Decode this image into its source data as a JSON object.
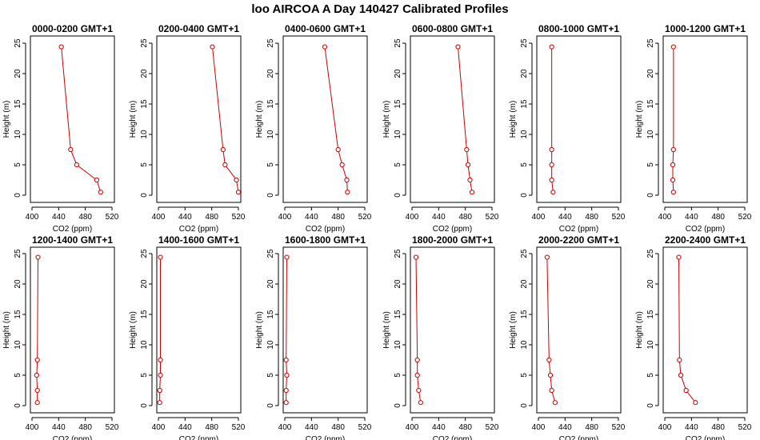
{
  "figure": {
    "title": "loo AIRCOA A  Day 140427  Calibrated Profiles"
  },
  "chart_data": {
    "type": "line",
    "shared": {
      "xlabel": "CO2 (ppm)",
      "ylabel": "Height (m)",
      "xlim": [
        400,
        520
      ],
      "ylim": [
        0,
        25
      ],
      "xticks": [
        400,
        440,
        480,
        520
      ],
      "yticks": [
        0,
        5,
        10,
        15,
        20,
        25
      ],
      "grid": false,
      "line_color": "#cc0000",
      "point_color": "#cc0000"
    },
    "panels": [
      {
        "title": "0000-0200 GMT+1",
        "x": [
          503,
          497,
          467,
          458,
          444
        ],
        "y": [
          0.5,
          2.5,
          5.0,
          7.5,
          24.4
        ]
      },
      {
        "title": "0200-0400 GMT+1",
        "x": [
          520,
          517,
          500,
          497,
          481
        ],
        "y": [
          0.5,
          2.5,
          5.0,
          7.5,
          24.4
        ]
      },
      {
        "title": "0400-0600 GMT+1",
        "x": [
          494,
          493,
          486,
          480,
          460
        ],
        "y": [
          0.5,
          2.5,
          5.0,
          7.5,
          24.4
        ]
      },
      {
        "title": "0600-0800 GMT+1",
        "x": [
          490,
          487,
          484,
          482,
          469
        ],
        "y": [
          0.5,
          2.5,
          5.0,
          7.5,
          24.4
        ]
      },
      {
        "title": "0800-1000 GMT+1",
        "x": [
          422,
          420,
          420,
          420,
          420
        ],
        "y": [
          0.5,
          2.5,
          5.0,
          7.5,
          24.4
        ]
      },
      {
        "title": "1000-1200 GMT+1",
        "x": [
          413,
          412,
          412,
          413,
          413
        ],
        "y": [
          0.5,
          2.5,
          5.0,
          7.5,
          24.4
        ]
      },
      {
        "title": "1200-1400 GMT+1",
        "x": [
          408,
          408,
          407,
          408,
          409
        ],
        "y": [
          0.5,
          2.5,
          5.0,
          7.5,
          24.4
        ]
      },
      {
        "title": "1400-1600 GMT+1",
        "x": [
          402,
          402,
          403,
          403,
          403
        ],
        "y": [
          0.5,
          2.5,
          5.0,
          7.5,
          24.4
        ]
      },
      {
        "title": "1600-1800 GMT+1",
        "x": [
          402,
          402,
          403,
          402,
          403
        ],
        "y": [
          0.5,
          2.5,
          5.0,
          7.5,
          24.4
        ]
      },
      {
        "title": "1800-2000 GMT+1",
        "x": [
          413,
          410,
          408,
          408,
          406
        ],
        "y": [
          0.5,
          2.5,
          5.0,
          7.5,
          24.4
        ]
      },
      {
        "title": "2000-2200 GMT+1",
        "x": [
          425,
          420,
          418,
          416,
          413
        ],
        "y": [
          0.5,
          2.5,
          5.0,
          7.5,
          24.4
        ]
      },
      {
        "title": "2200-2400 GMT+1",
        "x": [
          446,
          432,
          424,
          422,
          421
        ],
        "y": [
          0.5,
          2.5,
          5.0,
          7.5,
          24.4
        ]
      }
    ]
  }
}
